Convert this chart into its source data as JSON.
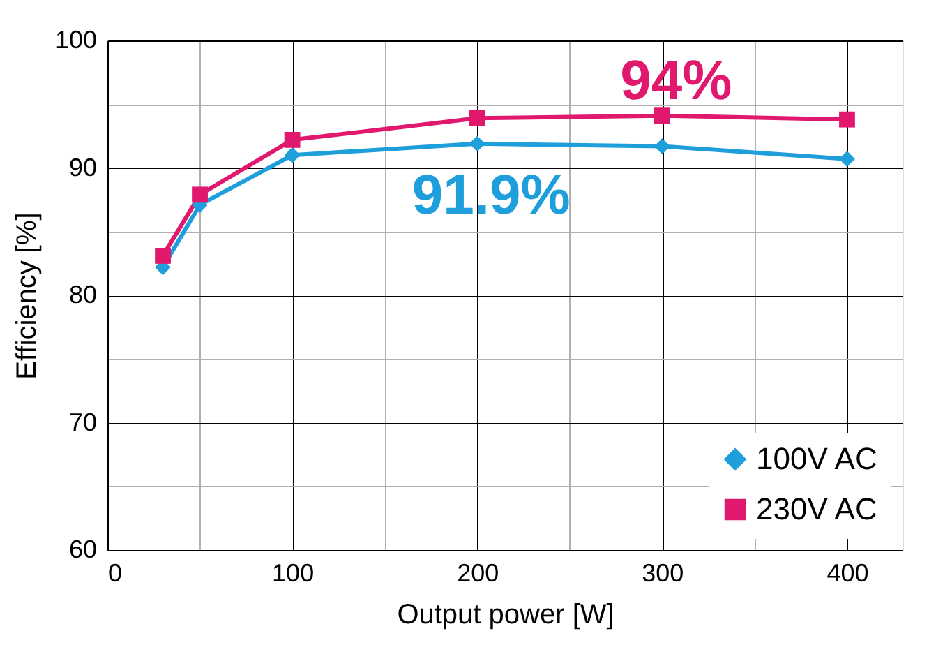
{
  "chart_data": {
    "type": "line",
    "xlabel": "Output power [W]",
    "ylabel": "Efficiency [%]",
    "xlim": [
      0,
      430
    ],
    "ylim": [
      60,
      100
    ],
    "xticks": [
      0,
      {
        "value": 50,
        "label": null
      },
      100,
      {
        "value": 150,
        "label": null
      },
      200,
      {
        "value": 250,
        "label": null
      },
      300,
      {
        "value": 350,
        "label": null
      },
      400
    ],
    "yticks": [
      60,
      {
        "value": 65,
        "label": null
      },
      70,
      {
        "value": 75,
        "label": null
      },
      80,
      {
        "value": 85,
        "label": null
      },
      90,
      {
        "value": 95,
        "label": null
      },
      100
    ],
    "grid": true,
    "legend": "bottom right",
    "series": [
      {
        "name": "100V AC",
        "color": "#1e9fdc",
        "marker": "diamond",
        "x": [
          30,
          50,
          100,
          200,
          300,
          400
        ],
        "values": [
          82.2,
          87.1,
          91.0,
          91.9,
          91.7,
          90.7
        ]
      },
      {
        "name": "230V AC",
        "color": "#e0196e",
        "marker": "square",
        "x": [
          30,
          50,
          100,
          200,
          300,
          400
        ],
        "values": [
          83.1,
          87.9,
          92.2,
          93.9,
          94.1,
          93.8
        ]
      }
    ],
    "annotations": [
      {
        "text": "91.9%",
        "x": 200,
        "y": 91.9
      },
      {
        "text": "94%",
        "x": 300,
        "y": 94.1
      }
    ]
  }
}
